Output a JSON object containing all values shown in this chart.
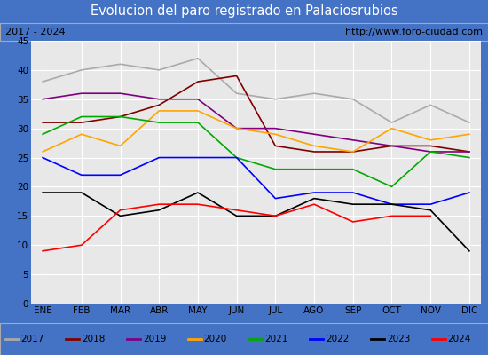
{
  "title": "Evolucion del paro registrado en Palaciosrubios",
  "subtitle_left": "2017 - 2024",
  "subtitle_right": "http://www.foro-ciudad.com",
  "months": [
    "ENE",
    "FEB",
    "MAR",
    "ABR",
    "MAY",
    "JUN",
    "JUL",
    "AGO",
    "SEP",
    "OCT",
    "NOV",
    "DIC"
  ],
  "series": {
    "2017": [
      38,
      40,
      41,
      40,
      42,
      36,
      35,
      36,
      35,
      31,
      34,
      31
    ],
    "2018": [
      31,
      31,
      32,
      34,
      38,
      39,
      27,
      26,
      26,
      27,
      27,
      26
    ],
    "2019": [
      35,
      36,
      36,
      35,
      35,
      30,
      30,
      29,
      28,
      27,
      26,
      26
    ],
    "2020": [
      26,
      29,
      27,
      33,
      33,
      30,
      29,
      27,
      26,
      30,
      28,
      29
    ],
    "2021": [
      29,
      32,
      32,
      31,
      31,
      25,
      23,
      23,
      23,
      20,
      26,
      25
    ],
    "2022": [
      25,
      22,
      22,
      25,
      25,
      25,
      18,
      19,
      19,
      17,
      17,
      19
    ],
    "2023": [
      19,
      19,
      15,
      16,
      19,
      15,
      15,
      18,
      17,
      17,
      16,
      9
    ],
    "2024": [
      9,
      10,
      16,
      17,
      17,
      16,
      15,
      17,
      14,
      15,
      15,
      null
    ]
  },
  "colors": {
    "2017": "#aaaaaa",
    "2018": "#800000",
    "2019": "#800080",
    "2020": "#ffa500",
    "2021": "#00aa00",
    "2022": "#0000ff",
    "2023": "#000000",
    "2024": "#ff0000"
  },
  "ylim": [
    0,
    45
  ],
  "yticks": [
    0,
    5,
    10,
    15,
    20,
    25,
    30,
    35,
    40,
    45
  ],
  "title_color": "#ffffff",
  "title_bg_color": "#4472c4",
  "subtitle_bg_color": "#ffffff",
  "plot_bg_color": "#e8e8e8",
  "grid_color": "#ffffff",
  "legend_bg_color": "#ffffff",
  "n_months_2024": 11,
  "fig_width": 5.5,
  "fig_height": 4.0,
  "dpi": 100
}
